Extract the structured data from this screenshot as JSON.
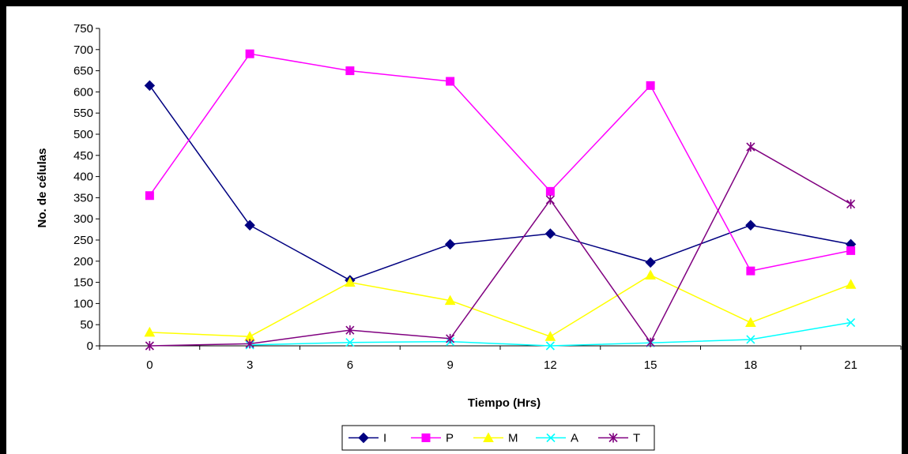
{
  "chart_data": {
    "type": "line",
    "title": "",
    "xlabel": "Tiempo (Hrs)",
    "ylabel": "No. de células",
    "x": [
      0,
      3,
      6,
      9,
      12,
      15,
      18,
      21
    ],
    "x_tick_labels": [
      "0",
      "3",
      "6",
      "9",
      "12",
      "15",
      "18",
      "21"
    ],
    "y_tick_labels": [
      "0",
      "50",
      "100",
      "150",
      "200",
      "250",
      "300",
      "350",
      "400",
      "450",
      "500",
      "550",
      "600",
      "650",
      "700",
      "750"
    ],
    "ylim": [
      0,
      750
    ],
    "y_step": 50,
    "grid": false,
    "legend_position": "bottom-center",
    "series": [
      {
        "name": "I",
        "color": "#000080",
        "marker": "diamond",
        "values": [
          615,
          285,
          155,
          240,
          265,
          197,
          285,
          240
        ]
      },
      {
        "name": "P",
        "color": "#FF00FF",
        "marker": "square",
        "values": [
          355,
          690,
          650,
          625,
          365,
          615,
          177,
          225
        ]
      },
      {
        "name": "M",
        "color": "#FFFF00",
        "marker": "triangle",
        "values": [
          32,
          22,
          150,
          107,
          22,
          167,
          55,
          145
        ]
      },
      {
        "name": "A",
        "color": "#00FFFF",
        "marker": "x",
        "values": [
          null,
          2,
          8,
          10,
          0,
          7,
          15,
          55
        ]
      },
      {
        "name": "T",
        "color": "#800080",
        "marker": "star",
        "values": [
          0,
          5,
          37,
          17,
          345,
          8,
          470,
          335
        ]
      }
    ]
  }
}
